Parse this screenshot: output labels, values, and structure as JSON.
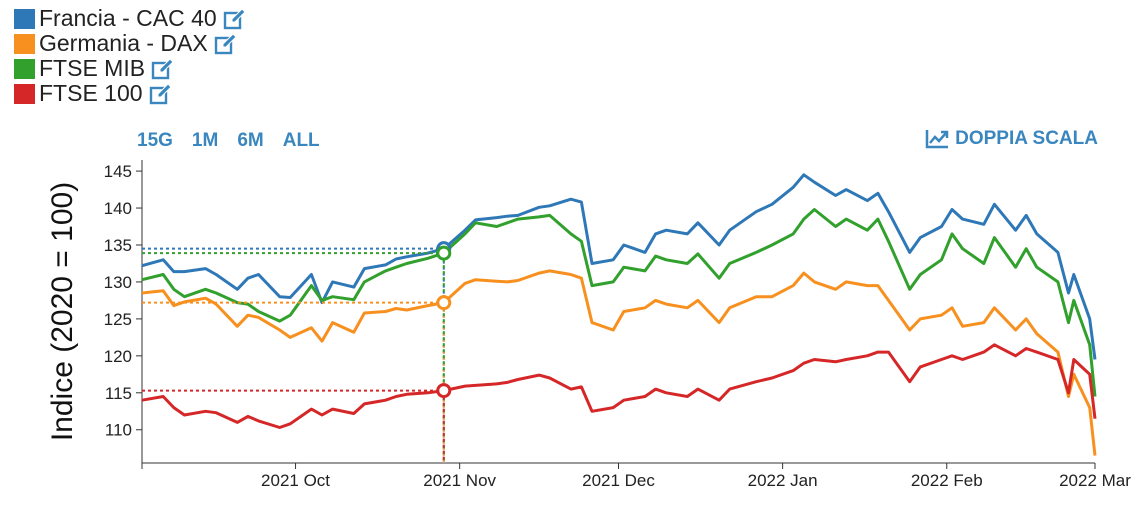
{
  "legend": {
    "items": [
      {
        "label": "Francia - CAC 40",
        "color": "#2e78b7",
        "icon": "edit-icon"
      },
      {
        "label": "Germania - DAX",
        "color": "#f7901e",
        "icon": "edit-icon"
      },
      {
        "label": "FTSE MIB",
        "color": "#31a02c",
        "icon": "edit-icon"
      },
      {
        "label": "FTSE 100",
        "color": "#d62728",
        "icon": "edit-icon"
      }
    ]
  },
  "ranges": [
    "15G",
    "1M",
    "6M",
    "ALL"
  ],
  "dual_scale": {
    "label": "DOPPIA SCALA",
    "icon": "trend-chart-icon"
  },
  "chart_data": {
    "type": "line",
    "ylabel": "Indice (2020 = 100)",
    "xlabel": "",
    "ylim": [
      105.5,
      146.5
    ],
    "yticks": [
      110,
      115,
      120,
      125,
      130,
      135,
      140,
      145
    ],
    "xlim": [
      "2021-09-02",
      "2022-03-01"
    ],
    "xticks": [
      {
        "date": "2021-10-01",
        "label": "2021 Oct"
      },
      {
        "date": "2021-11-01",
        "label": "2021 Nov"
      },
      {
        "date": "2021-12-01",
        "label": "2021 Dec"
      },
      {
        "date": "2022-01-01",
        "label": "2022 Jan"
      },
      {
        "date": "2022-02-01",
        "label": "2022 Feb"
      },
      {
        "date": "2022-03-01",
        "label": "2022 Mar"
      }
    ],
    "hover": {
      "date": "2021-10-29",
      "values": {
        "Francia - CAC 40": 134.5,
        "Germania - DAX": 127.2,
        "FTSE MIB": 133.9,
        "FTSE 100": 115.3
      }
    },
    "series": [
      {
        "name": "Francia - CAC 40",
        "color": "#2e78b7",
        "points": [
          [
            "2021-09-02",
            132.2
          ],
          [
            "2021-09-06",
            133.0
          ],
          [
            "2021-09-08",
            131.4
          ],
          [
            "2021-09-10",
            131.4
          ],
          [
            "2021-09-14",
            131.8
          ],
          [
            "2021-09-16",
            131.0
          ],
          [
            "2021-09-20",
            129.0
          ],
          [
            "2021-09-22",
            130.5
          ],
          [
            "2021-09-24",
            131.0
          ],
          [
            "2021-09-28",
            128.0
          ],
          [
            "2021-09-30",
            127.9
          ],
          [
            "2021-10-04",
            131.0
          ],
          [
            "2021-10-06",
            127.2
          ],
          [
            "2021-10-08",
            130.0
          ],
          [
            "2021-10-12",
            129.3
          ],
          [
            "2021-10-14",
            131.8
          ],
          [
            "2021-10-18",
            132.3
          ],
          [
            "2021-10-20",
            133.1
          ],
          [
            "2021-10-22",
            133.4
          ],
          [
            "2021-10-26",
            133.9
          ],
          [
            "2021-10-29",
            134.5
          ],
          [
            "2021-11-02",
            137.0
          ],
          [
            "2021-11-04",
            138.4
          ],
          [
            "2021-11-08",
            138.7
          ],
          [
            "2021-11-10",
            138.9
          ],
          [
            "2021-11-12",
            139.0
          ],
          [
            "2021-11-16",
            140.1
          ],
          [
            "2021-11-18",
            140.3
          ],
          [
            "2021-11-22",
            141.2
          ],
          [
            "2021-11-24",
            140.8
          ],
          [
            "2021-11-26",
            132.5
          ],
          [
            "2021-11-30",
            133.0
          ],
          [
            "2021-12-02",
            135.0
          ],
          [
            "2021-12-06",
            134.0
          ],
          [
            "2021-12-08",
            136.5
          ],
          [
            "2021-12-10",
            137.0
          ],
          [
            "2021-12-14",
            136.5
          ],
          [
            "2021-12-16",
            138.0
          ],
          [
            "2021-12-20",
            135.0
          ],
          [
            "2021-12-22",
            137.0
          ],
          [
            "2021-12-27",
            139.5
          ],
          [
            "2021-12-30",
            140.5
          ],
          [
            "2022-01-03",
            142.8
          ],
          [
            "2022-01-05",
            144.5
          ],
          [
            "2022-01-07",
            143.5
          ],
          [
            "2022-01-11",
            141.7
          ],
          [
            "2022-01-13",
            142.5
          ],
          [
            "2022-01-17",
            141.0
          ],
          [
            "2022-01-19",
            142.0
          ],
          [
            "2022-01-21",
            139.5
          ],
          [
            "2022-01-25",
            134.0
          ],
          [
            "2022-01-27",
            136.0
          ],
          [
            "2022-01-31",
            137.5
          ],
          [
            "2022-02-02",
            139.8
          ],
          [
            "2022-02-04",
            138.5
          ],
          [
            "2022-02-08",
            137.8
          ],
          [
            "2022-02-10",
            140.5
          ],
          [
            "2022-02-14",
            137.0
          ],
          [
            "2022-02-16",
            139.0
          ],
          [
            "2022-02-18",
            136.5
          ],
          [
            "2022-02-22",
            134.0
          ],
          [
            "2022-02-24",
            128.5
          ],
          [
            "2022-02-25",
            131.0
          ],
          [
            "2022-02-28",
            125.0
          ],
          [
            "2022-03-01",
            119.5
          ]
        ]
      },
      {
        "name": "Germania - DAX",
        "color": "#f7901e",
        "points": [
          [
            "2021-09-02",
            128.5
          ],
          [
            "2021-09-06",
            128.8
          ],
          [
            "2021-09-08",
            126.8
          ],
          [
            "2021-09-10",
            127.3
          ],
          [
            "2021-09-14",
            127.8
          ],
          [
            "2021-09-16",
            127.0
          ],
          [
            "2021-09-20",
            124.0
          ],
          [
            "2021-09-22",
            125.5
          ],
          [
            "2021-09-24",
            125.2
          ],
          [
            "2021-09-28",
            123.5
          ],
          [
            "2021-09-30",
            122.5
          ],
          [
            "2021-10-04",
            123.8
          ],
          [
            "2021-10-06",
            122.0
          ],
          [
            "2021-10-08",
            124.5
          ],
          [
            "2021-10-12",
            123.2
          ],
          [
            "2021-10-14",
            125.8
          ],
          [
            "2021-10-18",
            126.0
          ],
          [
            "2021-10-20",
            126.4
          ],
          [
            "2021-10-22",
            126.2
          ],
          [
            "2021-10-26",
            126.8
          ],
          [
            "2021-10-29",
            127.2
          ],
          [
            "2021-11-02",
            129.8
          ],
          [
            "2021-11-04",
            130.3
          ],
          [
            "2021-11-08",
            130.1
          ],
          [
            "2021-11-10",
            130.0
          ],
          [
            "2021-11-12",
            130.2
          ],
          [
            "2021-11-16",
            131.2
          ],
          [
            "2021-11-18",
            131.5
          ],
          [
            "2021-11-22",
            131.0
          ],
          [
            "2021-11-24",
            130.5
          ],
          [
            "2021-11-26",
            124.5
          ],
          [
            "2021-11-30",
            123.5
          ],
          [
            "2021-12-02",
            126.0
          ],
          [
            "2021-12-06",
            126.5
          ],
          [
            "2021-12-08",
            127.5
          ],
          [
            "2021-12-10",
            127.0
          ],
          [
            "2021-12-14",
            126.5
          ],
          [
            "2021-12-16",
            127.5
          ],
          [
            "2021-12-20",
            124.5
          ],
          [
            "2021-12-22",
            126.5
          ],
          [
            "2021-12-27",
            128.0
          ],
          [
            "2021-12-30",
            128.0
          ],
          [
            "2022-01-03",
            129.5
          ],
          [
            "2022-01-05",
            131.2
          ],
          [
            "2022-01-07",
            130.0
          ],
          [
            "2022-01-11",
            129.0
          ],
          [
            "2022-01-13",
            130.0
          ],
          [
            "2022-01-17",
            129.5
          ],
          [
            "2022-01-19",
            129.5
          ],
          [
            "2022-01-21",
            127.5
          ],
          [
            "2022-01-25",
            123.5
          ],
          [
            "2022-01-27",
            125.0
          ],
          [
            "2022-01-31",
            125.5
          ],
          [
            "2022-02-02",
            126.5
          ],
          [
            "2022-02-04",
            124.0
          ],
          [
            "2022-02-08",
            124.5
          ],
          [
            "2022-02-10",
            126.5
          ],
          [
            "2022-02-14",
            123.5
          ],
          [
            "2022-02-16",
            125.0
          ],
          [
            "2022-02-18",
            123.0
          ],
          [
            "2022-02-22",
            120.5
          ],
          [
            "2022-02-24",
            114.5
          ],
          [
            "2022-02-25",
            117.5
          ],
          [
            "2022-02-28",
            113.0
          ],
          [
            "2022-03-01",
            106.5
          ]
        ]
      },
      {
        "name": "FTSE MIB",
        "color": "#31a02c",
        "points": [
          [
            "2021-09-02",
            130.3
          ],
          [
            "2021-09-06",
            131.0
          ],
          [
            "2021-09-08",
            129.0
          ],
          [
            "2021-09-10",
            128.0
          ],
          [
            "2021-09-14",
            129.0
          ],
          [
            "2021-09-16",
            128.5
          ],
          [
            "2021-09-20",
            127.2
          ],
          [
            "2021-09-22",
            127.0
          ],
          [
            "2021-09-24",
            126.0
          ],
          [
            "2021-09-28",
            124.7
          ],
          [
            "2021-09-30",
            125.5
          ],
          [
            "2021-10-04",
            129.5
          ],
          [
            "2021-10-06",
            127.5
          ],
          [
            "2021-10-08",
            128.0
          ],
          [
            "2021-10-12",
            127.6
          ],
          [
            "2021-10-14",
            130.0
          ],
          [
            "2021-10-18",
            131.5
          ],
          [
            "2021-10-20",
            132.0
          ],
          [
            "2021-10-22",
            132.5
          ],
          [
            "2021-10-26",
            133.2
          ],
          [
            "2021-10-29",
            133.9
          ],
          [
            "2021-11-02",
            136.5
          ],
          [
            "2021-11-04",
            138.0
          ],
          [
            "2021-11-08",
            137.5
          ],
          [
            "2021-11-10",
            138.0
          ],
          [
            "2021-11-12",
            138.5
          ],
          [
            "2021-11-16",
            138.8
          ],
          [
            "2021-11-18",
            139.0
          ],
          [
            "2021-11-22",
            136.5
          ],
          [
            "2021-11-24",
            135.5
          ],
          [
            "2021-11-26",
            129.5
          ],
          [
            "2021-11-30",
            130.0
          ],
          [
            "2021-12-02",
            132.0
          ],
          [
            "2021-12-06",
            131.5
          ],
          [
            "2021-12-08",
            133.5
          ],
          [
            "2021-12-10",
            133.0
          ],
          [
            "2021-12-14",
            132.5
          ],
          [
            "2021-12-16",
            133.8
          ],
          [
            "2021-12-20",
            130.5
          ],
          [
            "2021-12-22",
            132.5
          ],
          [
            "2021-12-27",
            134.0
          ],
          [
            "2021-12-30",
            135.0
          ],
          [
            "2022-01-03",
            136.5
          ],
          [
            "2022-01-05",
            138.5
          ],
          [
            "2022-01-07",
            139.8
          ],
          [
            "2022-01-11",
            137.5
          ],
          [
            "2022-01-13",
            138.5
          ],
          [
            "2022-01-17",
            137.0
          ],
          [
            "2022-01-19",
            138.5
          ],
          [
            "2022-01-21",
            135.5
          ],
          [
            "2022-01-25",
            129.0
          ],
          [
            "2022-01-27",
            131.0
          ],
          [
            "2022-01-31",
            133.0
          ],
          [
            "2022-02-02",
            136.5
          ],
          [
            "2022-02-04",
            134.5
          ],
          [
            "2022-02-08",
            132.5
          ],
          [
            "2022-02-10",
            136.0
          ],
          [
            "2022-02-14",
            132.0
          ],
          [
            "2022-02-16",
            134.5
          ],
          [
            "2022-02-18",
            132.0
          ],
          [
            "2022-02-22",
            130.0
          ],
          [
            "2022-02-24",
            124.5
          ],
          [
            "2022-02-25",
            127.5
          ],
          [
            "2022-02-28",
            121.5
          ],
          [
            "2022-03-01",
            114.5
          ]
        ]
      },
      {
        "name": "FTSE 100",
        "color": "#d62728",
        "points": [
          [
            "2021-09-02",
            114.0
          ],
          [
            "2021-09-06",
            114.5
          ],
          [
            "2021-09-08",
            113.0
          ],
          [
            "2021-09-10",
            112.0
          ],
          [
            "2021-09-14",
            112.5
          ],
          [
            "2021-09-16",
            112.3
          ],
          [
            "2021-09-20",
            111.0
          ],
          [
            "2021-09-22",
            111.8
          ],
          [
            "2021-09-24",
            111.2
          ],
          [
            "2021-09-28",
            110.3
          ],
          [
            "2021-09-30",
            110.8
          ],
          [
            "2021-10-04",
            112.8
          ],
          [
            "2021-10-06",
            112.0
          ],
          [
            "2021-10-08",
            112.8
          ],
          [
            "2021-10-12",
            112.2
          ],
          [
            "2021-10-14",
            113.5
          ],
          [
            "2021-10-18",
            114.0
          ],
          [
            "2021-10-20",
            114.5
          ],
          [
            "2021-10-22",
            114.8
          ],
          [
            "2021-10-26",
            115.0
          ],
          [
            "2021-10-29",
            115.3
          ],
          [
            "2021-11-02",
            115.9
          ],
          [
            "2021-11-04",
            116.0
          ],
          [
            "2021-11-08",
            116.2
          ],
          [
            "2021-11-10",
            116.4
          ],
          [
            "2021-11-12",
            116.8
          ],
          [
            "2021-11-16",
            117.4
          ],
          [
            "2021-11-18",
            117.0
          ],
          [
            "2021-11-22",
            115.5
          ],
          [
            "2021-11-24",
            115.8
          ],
          [
            "2021-11-26",
            112.5
          ],
          [
            "2021-11-30",
            113.0
          ],
          [
            "2021-12-02",
            114.0
          ],
          [
            "2021-12-06",
            114.5
          ],
          [
            "2021-12-08",
            115.5
          ],
          [
            "2021-12-10",
            115.0
          ],
          [
            "2021-12-14",
            114.5
          ],
          [
            "2021-12-16",
            115.5
          ],
          [
            "2021-12-20",
            114.0
          ],
          [
            "2021-12-22",
            115.5
          ],
          [
            "2021-12-27",
            116.5
          ],
          [
            "2021-12-30",
            117.0
          ],
          [
            "2022-01-03",
            118.0
          ],
          [
            "2022-01-05",
            119.0
          ],
          [
            "2022-01-07",
            119.5
          ],
          [
            "2022-01-11",
            119.2
          ],
          [
            "2022-01-13",
            119.5
          ],
          [
            "2022-01-17",
            120.0
          ],
          [
            "2022-01-19",
            120.5
          ],
          [
            "2022-01-21",
            120.5
          ],
          [
            "2022-01-25",
            116.5
          ],
          [
            "2022-01-27",
            118.5
          ],
          [
            "2022-01-31",
            119.5
          ],
          [
            "2022-02-02",
            120.0
          ],
          [
            "2022-02-04",
            119.5
          ],
          [
            "2022-02-08",
            120.5
          ],
          [
            "2022-02-10",
            121.5
          ],
          [
            "2022-02-14",
            120.0
          ],
          [
            "2022-02-16",
            121.0
          ],
          [
            "2022-02-18",
            120.5
          ],
          [
            "2022-02-22",
            119.5
          ],
          [
            "2022-02-24",
            115.0
          ],
          [
            "2022-02-25",
            119.5
          ],
          [
            "2022-02-28",
            117.5
          ],
          [
            "2022-03-01",
            111.5
          ]
        ]
      }
    ]
  }
}
